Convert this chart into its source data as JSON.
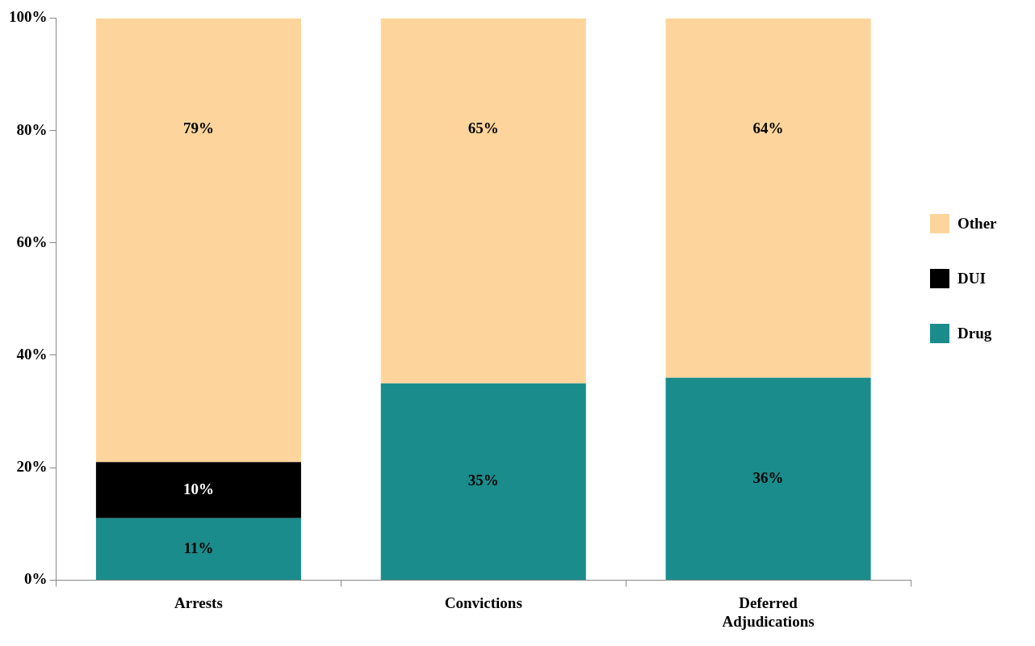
{
  "chart_data": {
    "type": "bar",
    "stacked": true,
    "categories": [
      "Arrests",
      "Convictions",
      "Deferred Adjudications"
    ],
    "series": [
      {
        "name": "Drug",
        "color": "#1b8c8c",
        "values": [
          11,
          35,
          36
        ],
        "value_labels": [
          "11%",
          "35%",
          "36%"
        ]
      },
      {
        "name": "DUI",
        "color": "#000000",
        "values": [
          10,
          null,
          null
        ],
        "value_labels": [
          "10%",
          null,
          null
        ]
      },
      {
        "name": "Other",
        "color": "#fdd59c",
        "values": [
          79,
          65,
          64
        ],
        "value_labels": [
          "79%",
          "65%",
          "64%"
        ]
      }
    ],
    "ylim": [
      0,
      100
    ],
    "yticks": [
      {
        "value": 0,
        "label": "0%"
      },
      {
        "value": 20,
        "label": "20%"
      },
      {
        "value": 40,
        "label": "40%"
      },
      {
        "value": 60,
        "label": "60%"
      },
      {
        "value": 80,
        "label": "80%"
      },
      {
        "value": 100,
        "label": "100%"
      }
    ],
    "grid": false,
    "legend": "right"
  }
}
